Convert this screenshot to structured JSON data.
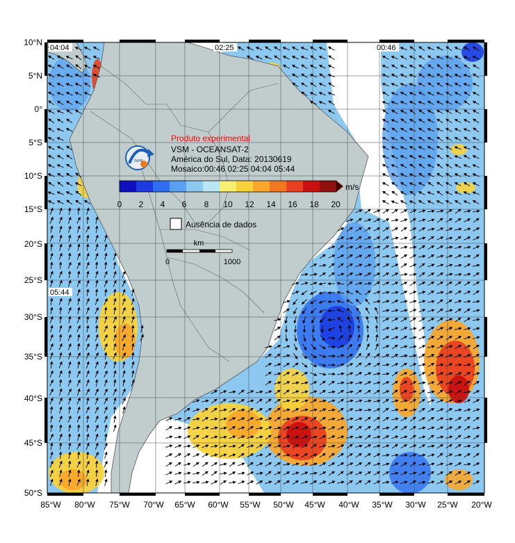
{
  "map": {
    "lat_labels": [
      "10°N",
      "5°N",
      "0°",
      "5°S",
      "10°S",
      "15°S",
      "20°S",
      "25°S",
      "30°S",
      "35°S",
      "40°S",
      "45°S",
      "50°S"
    ],
    "lon_labels": [
      "85°W",
      "80°W",
      "75°W",
      "70°W",
      "65°W",
      "60°W",
      "55°W",
      "50°W",
      "45°W",
      "40°W",
      "35°W",
      "30°W",
      "25°W",
      "20°W"
    ],
    "pass_times": [
      "04:04",
      "02:25",
      "00:46",
      "05:44"
    ]
  },
  "info": {
    "experimental": "Produto experimental",
    "product": "VSM - OCEANSAT-2",
    "region_date": "América do Sul, Data: 20130619",
    "mosaic": "Mosaico:00:46 02:25 04:04 05:44",
    "logo_text": "INPE",
    "experimental_color": "#ff0000"
  },
  "colorbar": {
    "unit": "m/s",
    "ticks": [
      "0",
      "2",
      "4",
      "6",
      "8",
      "10",
      "12",
      "14",
      "16",
      "18",
      "20"
    ],
    "colors": [
      "#1010c0",
      "#1c3ce0",
      "#2f6ef0",
      "#5aa0f0",
      "#8cc8f0",
      "#b8e6f4",
      "#f8f070",
      "#f8d23c",
      "#f8a82c",
      "#f07820",
      "#e84020",
      "#c81010",
      "#901010"
    ]
  },
  "legend": {
    "no_data": "Ausência de dados"
  },
  "scale_bar": {
    "unit": "km",
    "start": "0",
    "end": "1000"
  }
}
